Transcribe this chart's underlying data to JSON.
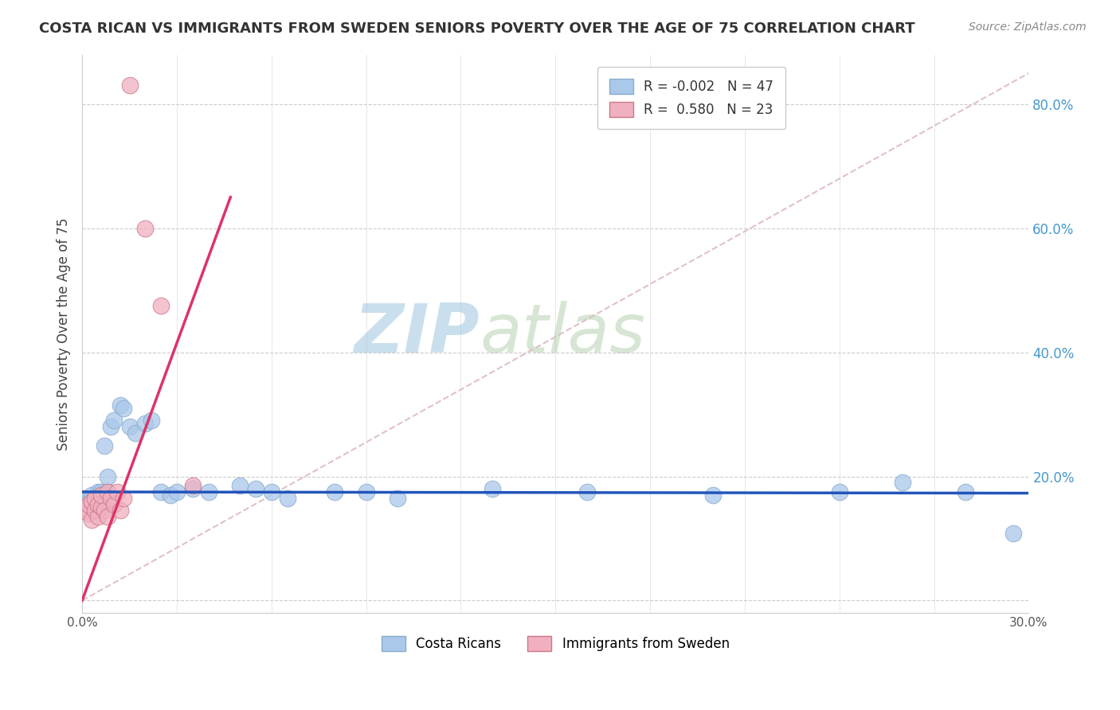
{
  "title": "COSTA RICAN VS IMMIGRANTS FROM SWEDEN SENIORS POVERTY OVER THE AGE OF 75 CORRELATION CHART",
  "source": "Source: ZipAtlas.com",
  "ylabel": "Seniors Poverty Over the Age of 75",
  "xlim": [
    0.0,
    0.3
  ],
  "ylim": [
    -0.02,
    0.88
  ],
  "yticks": [
    0.0,
    0.2,
    0.4,
    0.6,
    0.8
  ],
  "ytick_labels": [
    "",
    "20.0%",
    "40.0%",
    "60.0%",
    "80.0%"
  ],
  "watermark_zip": "ZIP",
  "watermark_atlas": "atlas",
  "background_color": "#ffffff",
  "grid_color": "#cccccc",
  "scatter_blue": "#aac8ea",
  "scatter_pink": "#f0b0c0",
  "blue_line_color": "#2255bb",
  "pink_line_color": "#dd3366",
  "diag_line_color": "#ddbbc0",
  "blue_R": -0.002,
  "blue_N": 47,
  "pink_R": 0.58,
  "pink_N": 23,
  "blue_scatter_x": [
    0.001,
    0.002,
    0.002,
    0.003,
    0.003,
    0.003,
    0.004,
    0.004,
    0.004,
    0.005,
    0.005,
    0.005,
    0.005,
    0.006,
    0.006,
    0.006,
    0.007,
    0.007,
    0.008,
    0.008,
    0.009,
    0.01,
    0.012,
    0.013,
    0.015,
    0.017,
    0.02,
    0.022,
    0.025,
    0.028,
    0.03,
    0.035,
    0.04,
    0.05,
    0.055,
    0.06,
    0.065,
    0.08,
    0.09,
    0.1,
    0.13,
    0.16,
    0.2,
    0.24,
    0.26,
    0.28,
    0.295
  ],
  "blue_scatter_y": [
    0.165,
    0.155,
    0.16,
    0.15,
    0.16,
    0.17,
    0.145,
    0.155,
    0.165,
    0.15,
    0.16,
    0.17,
    0.175,
    0.155,
    0.165,
    0.175,
    0.155,
    0.25,
    0.175,
    0.2,
    0.28,
    0.29,
    0.315,
    0.31,
    0.28,
    0.27,
    0.285,
    0.29,
    0.175,
    0.17,
    0.175,
    0.18,
    0.175,
    0.185,
    0.18,
    0.175,
    0.165,
    0.175,
    0.175,
    0.165,
    0.18,
    0.175,
    0.17,
    0.175,
    0.19,
    0.175,
    0.108
  ],
  "pink_scatter_x": [
    0.001,
    0.002,
    0.002,
    0.003,
    0.003,
    0.004,
    0.004,
    0.005,
    0.005,
    0.006,
    0.006,
    0.007,
    0.008,
    0.008,
    0.009,
    0.01,
    0.011,
    0.012,
    0.013,
    0.015,
    0.02,
    0.025,
    0.035
  ],
  "pink_scatter_y": [
    0.145,
    0.14,
    0.155,
    0.13,
    0.16,
    0.145,
    0.165,
    0.135,
    0.155,
    0.15,
    0.17,
    0.145,
    0.175,
    0.135,
    0.165,
    0.155,
    0.175,
    0.145,
    0.165,
    0.83,
    0.6,
    0.475,
    0.185
  ],
  "blue_trend_x": [
    0.0,
    0.3
  ],
  "blue_trend_y": [
    0.175,
    0.173
  ],
  "pink_trend_x": [
    0.0,
    0.047
  ],
  "pink_trend_y": [
    0.0,
    0.65
  ]
}
